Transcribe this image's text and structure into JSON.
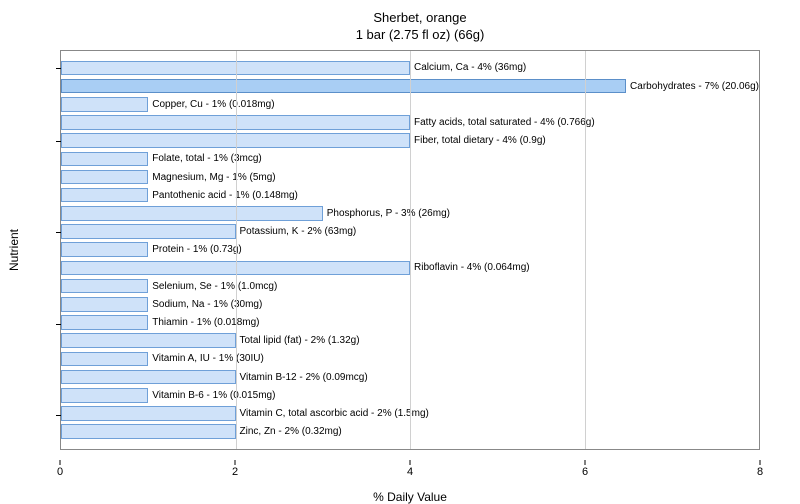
{
  "chart": {
    "type": "bar-horizontal",
    "title_line1": "Sherbet, orange",
    "title_line2": "1 bar (2.75 fl oz) (66g)",
    "title_fontsize": 13,
    "x_axis": {
      "title": "% Daily Value",
      "min": 0,
      "max": 8,
      "ticks": [
        0,
        2,
        4,
        6,
        8
      ],
      "label_fontsize": 11,
      "title_fontsize": 12
    },
    "y_axis": {
      "title": "Nutrient",
      "title_fontsize": 12,
      "group_tick_after_rows": [
        0,
        4,
        9,
        14,
        19
      ]
    },
    "bar_fill": "#cfe2f9",
    "bar_border": "#6fa0d8",
    "highlight_fill": "#a9cef4",
    "highlight_border": "#5b8fc9",
    "grid_color": "#d0d0d0",
    "border_color": "#888888",
    "background": "#ffffff",
    "label_fontsize": 10,
    "bars": [
      {
        "value": 4,
        "label": "Calcium, Ca - 4% (36mg)",
        "highlight": false
      },
      {
        "value": 7,
        "label": "Carbohydrates - 7% (20.06g)",
        "highlight": true
      },
      {
        "value": 1,
        "label": "Copper, Cu - 1% (0.018mg)",
        "highlight": false
      },
      {
        "value": 4,
        "label": "Fatty acids, total saturated - 4% (0.766g)",
        "highlight": false
      },
      {
        "value": 4,
        "label": "Fiber, total dietary - 4% (0.9g)",
        "highlight": false
      },
      {
        "value": 1,
        "label": "Folate, total - 1% (3mcg)",
        "highlight": false
      },
      {
        "value": 1,
        "label": "Magnesium, Mg - 1% (5mg)",
        "highlight": false
      },
      {
        "value": 1,
        "label": "Pantothenic acid - 1% (0.148mg)",
        "highlight": false
      },
      {
        "value": 3,
        "label": "Phosphorus, P - 3% (26mg)",
        "highlight": false
      },
      {
        "value": 2,
        "label": "Potassium, K - 2% (63mg)",
        "highlight": false
      },
      {
        "value": 1,
        "label": "Protein - 1% (0.73g)",
        "highlight": false
      },
      {
        "value": 4,
        "label": "Riboflavin - 4% (0.064mg)",
        "highlight": false
      },
      {
        "value": 1,
        "label": "Selenium, Se - 1% (1.0mcg)",
        "highlight": false
      },
      {
        "value": 1,
        "label": "Sodium, Na - 1% (30mg)",
        "highlight": false
      },
      {
        "value": 1,
        "label": "Thiamin - 1% (0.018mg)",
        "highlight": false
      },
      {
        "value": 2,
        "label": "Total lipid (fat) - 2% (1.32g)",
        "highlight": false
      },
      {
        "value": 1,
        "label": "Vitamin A, IU - 1% (30IU)",
        "highlight": false
      },
      {
        "value": 2,
        "label": "Vitamin B-12 - 2% (0.09mcg)",
        "highlight": false
      },
      {
        "value": 1,
        "label": "Vitamin B-6 - 1% (0.015mg)",
        "highlight": false
      },
      {
        "value": 2,
        "label": "Vitamin C, total ascorbic acid - 2% (1.5mg)",
        "highlight": false
      },
      {
        "value": 2,
        "label": "Zinc, Zn - 2% (0.32mg)",
        "highlight": false
      }
    ]
  }
}
